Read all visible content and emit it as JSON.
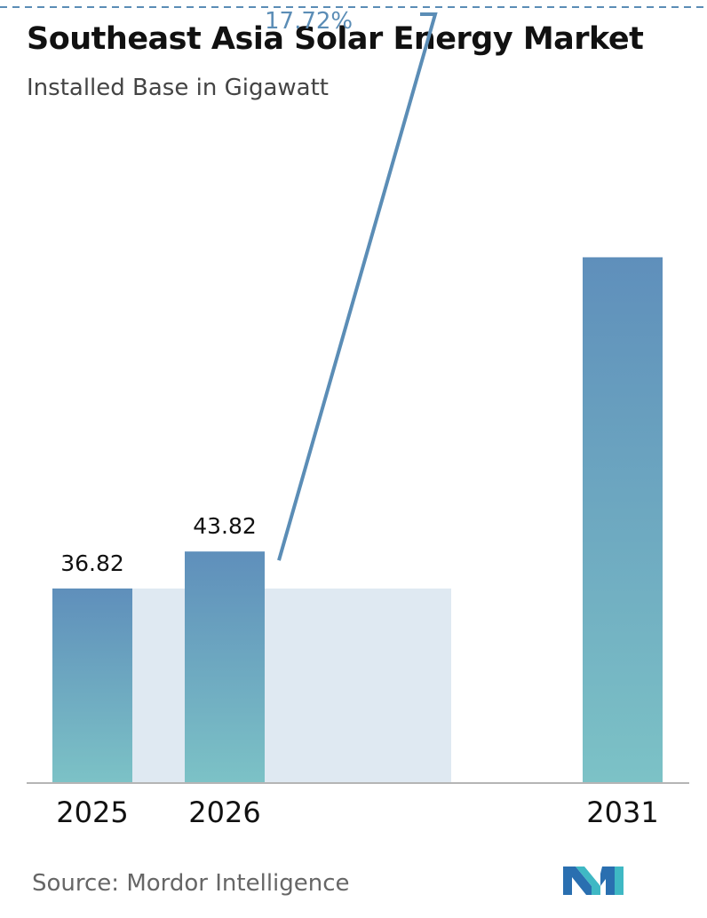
{
  "header": {
    "title": "Southeast Asia Solar Energy Market",
    "subtitle": "Installed Base in Gigawatt"
  },
  "footer": {
    "source": "Source:  Mordor Intelligence"
  },
  "colors": {
    "bar_top": "#5f8fbb",
    "bar_bottom": "#7cc2c6",
    "band": "#dfe9f2",
    "cagr_line": "#5b8db6",
    "axis": "#b5b5b5"
  },
  "chart_data": {
    "type": "bar",
    "categories": [
      "2025",
      "2026",
      "2031"
    ],
    "values": [
      36.82,
      43.82,
      99.5
    ],
    "data_labels": [
      "36.82",
      "43.82",
      ""
    ],
    "cagr_label": "17.72%",
    "ylim": [
      0,
      125
    ],
    "xlabel": "",
    "ylabel": "",
    "grid": false,
    "legend": false
  }
}
